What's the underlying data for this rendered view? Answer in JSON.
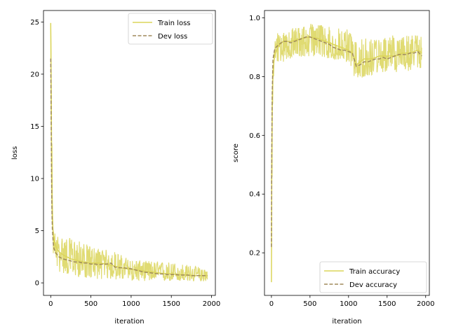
{
  "chart_data": [
    {
      "type": "line",
      "xlabel": "iteration",
      "ylabel": "loss",
      "xlim": [
        -90,
        2048
      ],
      "ylim": [
        -1.2,
        26.1
      ],
      "xticks": [
        0,
        500,
        1000,
        1500,
        2000
      ],
      "xtick_labels": [
        "0",
        "500",
        "1000",
        "1500",
        "2000"
      ],
      "yticks": [
        0,
        5,
        10,
        15,
        20,
        25
      ],
      "ytick_labels": [
        "0",
        "5",
        "10",
        "15",
        "20",
        "25"
      ],
      "legend_position": "upper right",
      "series": [
        {
          "name": "Train loss",
          "style": "solid",
          "color": "#dbd55a",
          "points": [
            [
              0,
              24.9
            ],
            [
              5,
              18.0
            ],
            [
              10,
              11.5
            ],
            [
              15,
              8.0
            ],
            [
              20,
              6.0
            ],
            [
              30,
              4.8
            ],
            [
              40,
              4.2
            ],
            [
              50,
              3.8
            ],
            [
              70,
              3.4
            ],
            [
              100,
              3.0
            ],
            [
              150,
              2.7
            ],
            [
              200,
              2.5
            ],
            [
              250,
              2.3
            ],
            [
              300,
              2.2
            ],
            [
              400,
              2.0
            ],
            [
              500,
              1.9
            ],
            [
              600,
              1.9
            ],
            [
              700,
              1.8
            ],
            [
              800,
              1.6
            ],
            [
              900,
              1.4
            ],
            [
              1000,
              1.3
            ],
            [
              1100,
              1.2
            ],
            [
              1200,
              1.1
            ],
            [
              1300,
              1.0
            ],
            [
              1400,
              0.9
            ],
            [
              1500,
              0.85
            ],
            [
              1600,
              0.8
            ],
            [
              1700,
              0.75
            ],
            [
              1800,
              0.7
            ],
            [
              1900,
              0.7
            ],
            [
              1950,
              0.7
            ]
          ],
          "band_low": [
            [
              0,
              20.0
            ],
            [
              30,
              2.5
            ],
            [
              100,
              1.0
            ],
            [
              300,
              0.6
            ],
            [
              500,
              0.4
            ],
            [
              800,
              0.3
            ],
            [
              1000,
              0.2
            ],
            [
              1500,
              0.15
            ],
            [
              1950,
              0.15
            ]
          ],
          "band_high": [
            [
              0,
              24.9
            ],
            [
              30,
              5.0
            ],
            [
              100,
              4.5
            ],
            [
              300,
              4.2
            ],
            [
              500,
              3.5
            ],
            [
              800,
              3.0
            ],
            [
              1000,
              2.2
            ],
            [
              1500,
              2.0
            ],
            [
              1950,
              1.4
            ]
          ]
        },
        {
          "name": "Dev loss",
          "style": "dashed",
          "color": "#a08a5c",
          "points": [
            [
              0,
              21.5
            ],
            [
              5,
              16.0
            ],
            [
              10,
              10.0
            ],
            [
              15,
              7.0
            ],
            [
              20,
              5.2
            ],
            [
              30,
              3.9
            ],
            [
              40,
              3.3
            ],
            [
              60,
              2.9
            ],
            [
              100,
              2.5
            ],
            [
              150,
              2.3
            ],
            [
              200,
              2.2
            ],
            [
              250,
              2.1
            ],
            [
              300,
              2.0
            ],
            [
              350,
              2.0
            ],
            [
              400,
              1.9
            ],
            [
              450,
              1.9
            ],
            [
              500,
              1.8
            ],
            [
              550,
              1.8
            ],
            [
              600,
              1.75
            ],
            [
              650,
              1.8
            ],
            [
              700,
              1.8
            ],
            [
              750,
              1.9
            ],
            [
              800,
              1.5
            ],
            [
              850,
              1.45
            ],
            [
              900,
              1.45
            ],
            [
              950,
              1.4
            ],
            [
              1000,
              1.35
            ],
            [
              1050,
              1.25
            ],
            [
              1100,
              1.15
            ],
            [
              1150,
              1.05
            ],
            [
              1200,
              1.0
            ],
            [
              1250,
              0.95
            ],
            [
              1300,
              0.9
            ],
            [
              1350,
              0.85
            ],
            [
              1400,
              0.85
            ],
            [
              1450,
              0.8
            ],
            [
              1500,
              0.8
            ],
            [
              1550,
              0.8
            ],
            [
              1600,
              0.75
            ],
            [
              1650,
              0.75
            ],
            [
              1700,
              0.75
            ],
            [
              1750,
              0.7
            ],
            [
              1800,
              0.7
            ],
            [
              1850,
              0.7
            ],
            [
              1900,
              0.7
            ],
            [
              1950,
              0.7
            ]
          ]
        }
      ]
    },
    {
      "type": "line",
      "xlabel": "iteration",
      "ylabel": "score",
      "xlim": [
        -90,
        2048
      ],
      "ylim": [
        0.055,
        1.025
      ],
      "xticks": [
        0,
        500,
        1000,
        1500,
        2000
      ],
      "xtick_labels": [
        "0",
        "500",
        "1000",
        "1500",
        "2000"
      ],
      "yticks": [
        0.2,
        0.4,
        0.6,
        0.8,
        1.0
      ],
      "ytick_labels": [
        "0.2",
        "0.4",
        "0.6",
        "0.8",
        "1.0"
      ],
      "legend_position": "lower right",
      "series": [
        {
          "name": "Train accuracy",
          "style": "solid",
          "color": "#dbd55a",
          "points": [
            [
              0,
              0.1
            ],
            [
              5,
              0.5
            ],
            [
              10,
              0.7
            ],
            [
              20,
              0.82
            ],
            [
              40,
              0.87
            ],
            [
              80,
              0.9
            ],
            [
              150,
              0.92
            ],
            [
              250,
              0.92
            ],
            [
              400,
              0.93
            ],
            [
              500,
              0.935
            ],
            [
              600,
              0.93
            ],
            [
              700,
              0.92
            ],
            [
              800,
              0.91
            ],
            [
              900,
              0.9
            ],
            [
              1000,
              0.89
            ],
            [
              1050,
              0.88
            ],
            [
              1100,
              0.84
            ],
            [
              1150,
              0.85
            ],
            [
              1200,
              0.86
            ],
            [
              1300,
              0.86
            ],
            [
              1400,
              0.87
            ],
            [
              1500,
              0.87
            ],
            [
              1600,
              0.87
            ],
            [
              1700,
              0.88
            ],
            [
              1800,
              0.88
            ],
            [
              1900,
              0.89
            ],
            [
              1950,
              0.88
            ]
          ],
          "band_low": [
            [
              0,
              0.1
            ],
            [
              20,
              0.78
            ],
            [
              80,
              0.83
            ],
            [
              200,
              0.86
            ],
            [
              500,
              0.87
            ],
            [
              800,
              0.86
            ],
            [
              1000,
              0.85
            ],
            [
              1100,
              0.78
            ],
            [
              1200,
              0.8
            ],
            [
              1500,
              0.81
            ],
            [
              1800,
              0.82
            ],
            [
              1950,
              0.83
            ]
          ],
          "band_high": [
            [
              0,
              0.5
            ],
            [
              20,
              0.9
            ],
            [
              80,
              0.95
            ],
            [
              200,
              0.96
            ],
            [
              500,
              0.98
            ],
            [
              800,
              0.97
            ],
            [
              1000,
              0.96
            ],
            [
              1100,
              0.92
            ],
            [
              1200,
              0.93
            ],
            [
              1500,
              0.94
            ],
            [
              1800,
              0.94
            ],
            [
              1950,
              0.94
            ]
          ]
        },
        {
          "name": "Dev accuracy",
          "style": "dashed",
          "color": "#a08a5c",
          "points": [
            [
              0,
              0.22
            ],
            [
              5,
              0.55
            ],
            [
              10,
              0.74
            ],
            [
              20,
              0.86
            ],
            [
              40,
              0.89
            ],
            [
              60,
              0.9
            ],
            [
              100,
              0.91
            ],
            [
              150,
              0.92
            ],
            [
              200,
              0.92
            ],
            [
              250,
              0.915
            ],
            [
              300,
              0.92
            ],
            [
              350,
              0.925
            ],
            [
              400,
              0.93
            ],
            [
              450,
              0.935
            ],
            [
              500,
              0.935
            ],
            [
              550,
              0.93
            ],
            [
              600,
              0.925
            ],
            [
              650,
              0.92
            ],
            [
              700,
              0.915
            ],
            [
              750,
              0.91
            ],
            [
              800,
              0.9
            ],
            [
              850,
              0.895
            ],
            [
              900,
              0.89
            ],
            [
              950,
              0.89
            ],
            [
              1000,
              0.885
            ],
            [
              1050,
              0.88
            ],
            [
              1100,
              0.835
            ],
            [
              1150,
              0.84
            ],
            [
              1200,
              0.85
            ],
            [
              1250,
              0.85
            ],
            [
              1300,
              0.855
            ],
            [
              1350,
              0.86
            ],
            [
              1400,
              0.86
            ],
            [
              1450,
              0.865
            ],
            [
              1500,
              0.86
            ],
            [
              1550,
              0.865
            ],
            [
              1600,
              0.87
            ],
            [
              1650,
              0.875
            ],
            [
              1700,
              0.875
            ],
            [
              1750,
              0.875
            ],
            [
              1800,
              0.88
            ],
            [
              1850,
              0.88
            ],
            [
              1900,
              0.885
            ],
            [
              1950,
              0.87
            ]
          ]
        }
      ]
    }
  ]
}
